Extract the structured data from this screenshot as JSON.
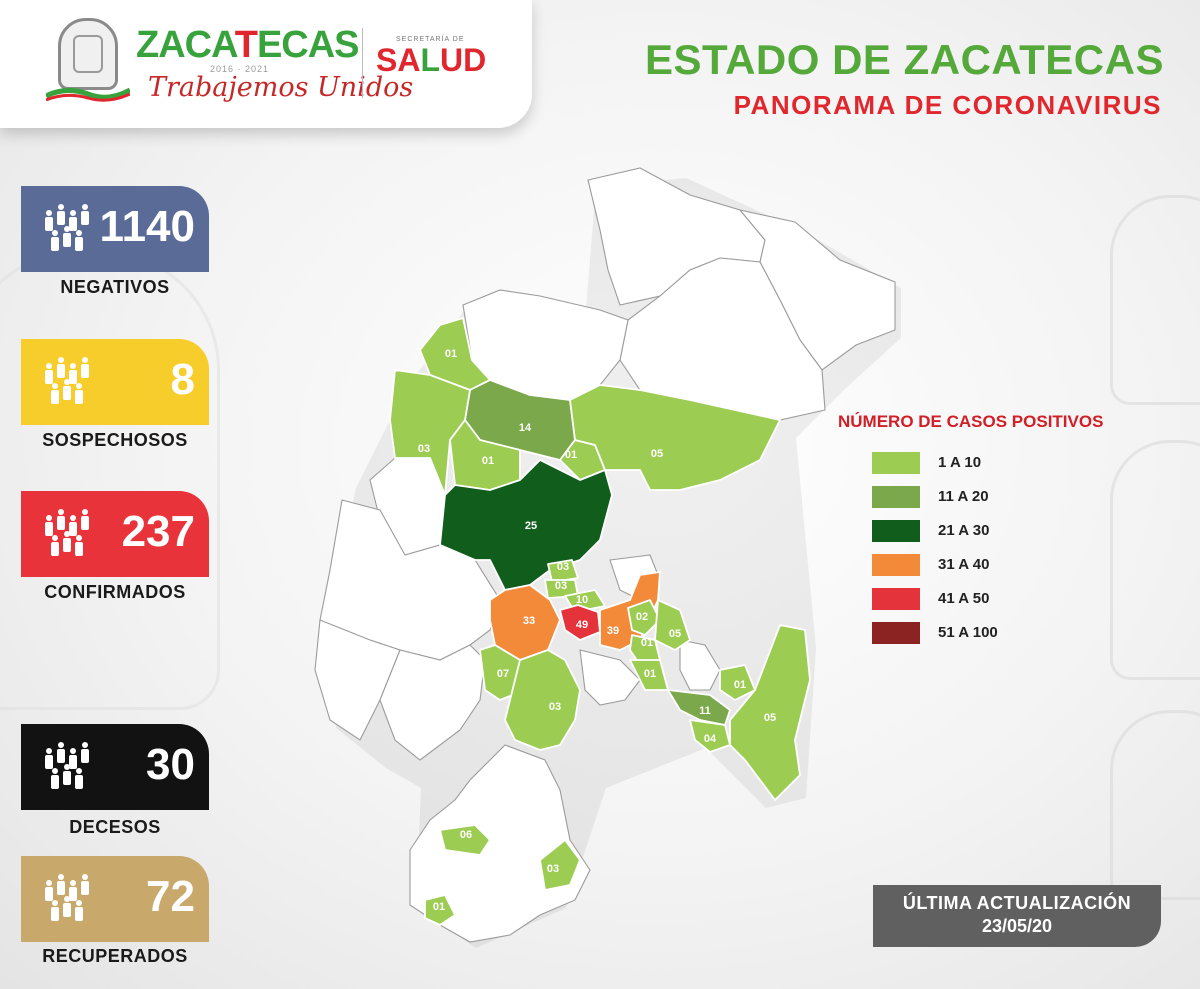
{
  "header": {
    "brand_title_pre": "ZACA",
    "brand_title_mark": "T",
    "brand_title_post": "ECAS",
    "brand_years": "2016 · 2021",
    "brand_tagline": "Trabajemos Unidos",
    "salud_subtitle": "SECRETARÍA DE",
    "salud_pre": "SA",
    "salud_mark": "L",
    "salud_post": "UD"
  },
  "title": "ESTADO DE ZACATECAS",
  "subtitle": "PANORAMA DE CORONAVIRUS",
  "stats": [
    {
      "key": "negativos",
      "value": "1140",
      "label": "NEGATIVOS",
      "color": "#5a6b97"
    },
    {
      "key": "sospechosos",
      "value": "8",
      "label": "SOSPECHOSOS",
      "color": "#f7cd2c"
    },
    {
      "key": "confirmados",
      "value": "237",
      "label": "CONFIRMADOS",
      "color": "#e8333a"
    },
    {
      "key": "decesos",
      "value": "30",
      "label": "DECESOS",
      "color": "#121212"
    },
    {
      "key": "recuperados",
      "value": "72",
      "label": "RECUPERADOS",
      "color": "#c9a86c"
    }
  ],
  "legend": {
    "title": "NÚMERO DE CASOS POSITIVOS",
    "items": [
      {
        "label": "1 A 10",
        "color": "#9ccc52"
      },
      {
        "label": "11 A 20",
        "color": "#7aa84a"
      },
      {
        "label": "21 A 30",
        "color": "#105d1c"
      },
      {
        "label": "31 A 40",
        "color": "#f28a3a"
      },
      {
        "label": "41 A 50",
        "color": "#e5333b"
      },
      {
        "label": "51 A 100",
        "color": "#8b2323"
      }
    ]
  },
  "map_labels": [
    "01",
    "14",
    "03",
    "01",
    "01",
    "05",
    "25",
    "03",
    "03",
    "10",
    "33",
    "49",
    "39",
    "02",
    "05",
    "01",
    "01",
    "07",
    "03",
    "01",
    "11",
    "04",
    "05",
    "06",
    "03",
    "01"
  ],
  "update": {
    "line1": "ÚLTIMA ACTUALIZACIÓN",
    "line2": "23/05/20"
  }
}
